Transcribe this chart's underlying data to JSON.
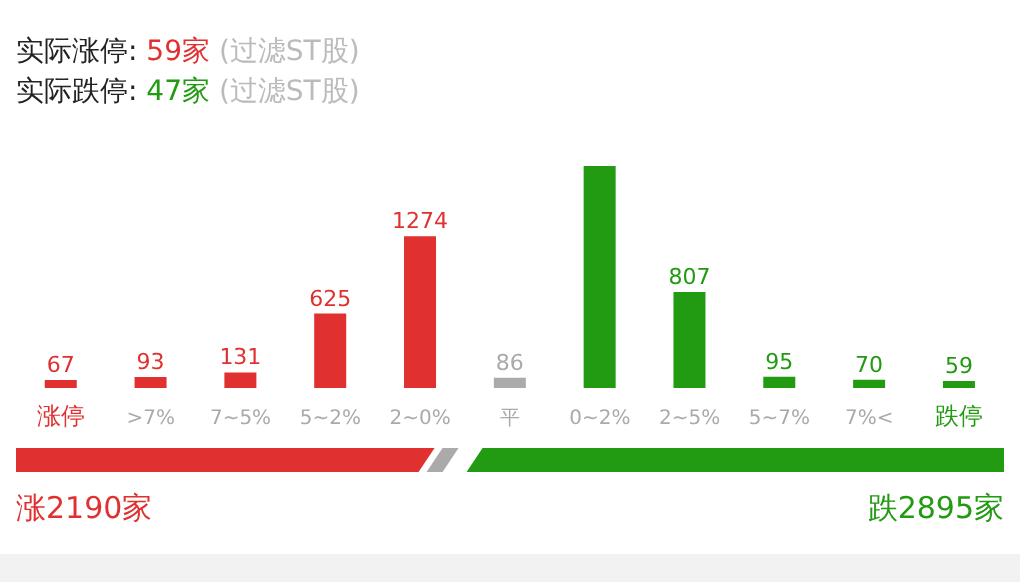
{
  "chart_data": {
    "type": "bar",
    "categories": [
      "涨停",
      ">7%",
      "7~5%",
      "5~2%",
      "2~0%",
      "平",
      "0~2%",
      "2~5%",
      "5~7%",
      "7%<",
      "跌停"
    ],
    "values": [
      67,
      93,
      131,
      625,
      1274,
      86,
      1864,
      807,
      95,
      70,
      59
    ],
    "colors": [
      "#e03030",
      "#e03030",
      "#e03030",
      "#e03030",
      "#e03030",
      "#aaaaaa",
      "#229a12",
      "#229a12",
      "#229a12",
      "#229a12",
      "#229a12"
    ],
    "value_labels": [
      "67",
      "93",
      "131",
      "625",
      "1274",
      "86",
      null,
      "807",
      "95",
      "70",
      "59"
    ],
    "annotations": [
      "实际涨停: 59家 (过滤ST股)",
      "实际跌停: 47家 (过滤ST股)",
      "涨2190家",
      "跌2895家"
    ]
  }
}
